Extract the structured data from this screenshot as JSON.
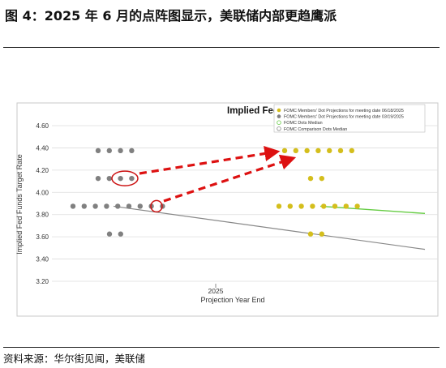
{
  "figure_title": "图 4：2025 年 6 月的点阵图显示，美联储内部更趋鹰派",
  "source": "资料来源：华尔街见闻，美联储",
  "chart_data": {
    "type": "scatter",
    "title": "Implied Fed Funds Target",
    "xlabel": "Projection Year End",
    "ylabel": "Implied Fed Funds Target Rate",
    "x_tick_label": "2025",
    "ylim": [
      3.2,
      4.7
    ],
    "yticks": [
      "3.20",
      "3.40",
      "3.60",
      "3.80",
      "4.00",
      "4.20",
      "4.40",
      "4.60"
    ],
    "grid": true,
    "legend_position": "top-right",
    "legend": [
      "FOMC Members' Dot Projections for meeting date 06/18/2025",
      "FOMC Members' Dot Projections for meeting date 03/19/2025",
      "FOMC Dots Median",
      "FOMC Comparison Dots Median"
    ],
    "series": [
      {
        "name": "FOMC Members' Dot Projections for meeting date 03/19/2025",
        "color": "#808080",
        "dot_rows": [
          {
            "rate": 4.375,
            "count": 4
          },
          {
            "rate": 4.125,
            "count": 4
          },
          {
            "rate": 3.875,
            "count": 9
          },
          {
            "rate": 3.625,
            "count": 2
          }
        ]
      },
      {
        "name": "FOMC Members' Dot Projections for meeting date 06/18/2025",
        "color": "#d4be1c",
        "dot_rows": [
          {
            "rate": 4.375,
            "count": 7
          },
          {
            "rate": 4.125,
            "count": 2
          },
          {
            "rate": 3.875,
            "count": 8
          },
          {
            "rate": 3.625,
            "count": 2
          }
        ]
      }
    ],
    "median_lines": [
      {
        "name": "FOMC Dots Median",
        "color": "#66cc44"
      },
      {
        "name": "FOMC Comparison Dots Median",
        "color": "#888888"
      }
    ],
    "colors": {
      "arrow": "#dd1111",
      "highlight_ring": "#cc1111",
      "gridline": "#dddddd"
    }
  }
}
